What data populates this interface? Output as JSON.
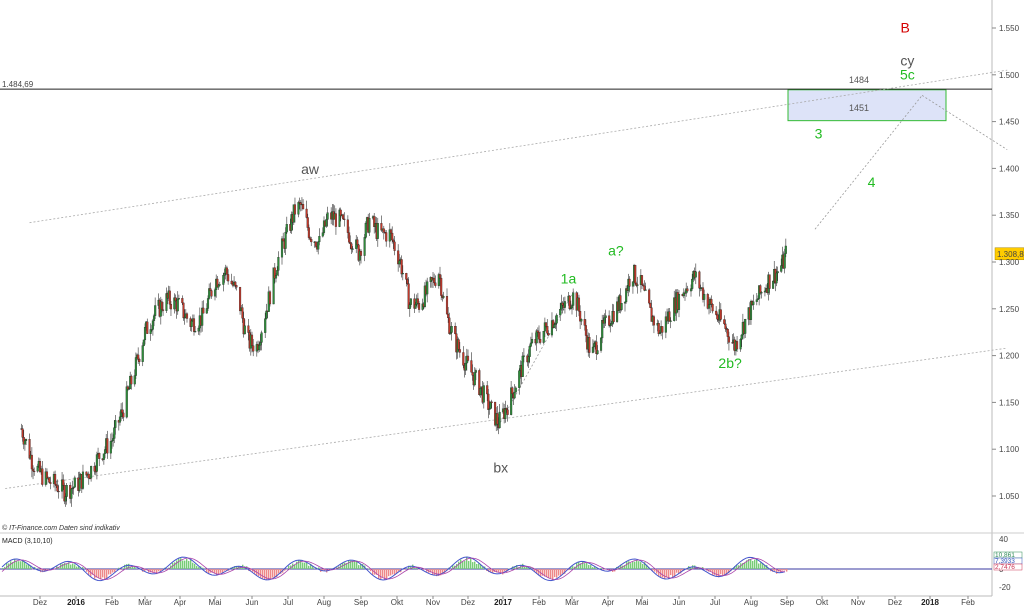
{
  "chart_data": {
    "type": "candlestick",
    "source_note": "© IT-Finance.com  Daten sind indikativ",
    "y_axis": {
      "ticks": [
        "1.550",
        "1.500",
        "1.450",
        "1.400",
        "1.350",
        "1.300",
        "1.250",
        "1.200",
        "1.150",
        "1.100",
        "1.050"
      ],
      "ylim": [
        1.015,
        1.575
      ],
      "tick_values": [
        1.55,
        1.5,
        1.45,
        1.4,
        1.35,
        1.3,
        1.25,
        1.2,
        1.15,
        1.1,
        1.05
      ]
    },
    "x_axis": {
      "labels": [
        "Dez",
        "2016",
        "Feb",
        "Mär",
        "Apr",
        "Mai",
        "Jun",
        "Jul",
        "Aug",
        "Sep",
        "Okt",
        "Nov",
        "Dez",
        "2017",
        "Feb",
        "Mär",
        "Apr",
        "Mai",
        "Jun",
        "Jul",
        "Aug",
        "Sep",
        "Okt",
        "Nov",
        "Dez",
        "2018",
        "Feb"
      ],
      "bold_labels": [
        "2016",
        "2017",
        "2018"
      ]
    },
    "last_price": "1.308,8",
    "last_value": 1.3088,
    "horizontal_line": {
      "value": 1.48469,
      "label": "1.484,69"
    },
    "target_zone": {
      "upper": 1.484,
      "lower": 1.451,
      "upper_label": "1484",
      "lower_label": "1451",
      "start": "Aug 2017",
      "end": "Jan 2018"
    },
    "close_path": [
      [
        "2015-11-15",
        1.122
      ],
      [
        "2015-11-25",
        1.085
      ],
      [
        "2015-12-05",
        1.068
      ],
      [
        "2015-12-15",
        1.062
      ],
      [
        "2015-12-22",
        1.055
      ],
      [
        "2016-01-02",
        1.062
      ],
      [
        "2016-01-12",
        1.075
      ],
      [
        "2016-01-22",
        1.095
      ],
      [
        "2016-02-01",
        1.11
      ],
      [
        "2016-02-10",
        1.14
      ],
      [
        "2016-02-20",
        1.18
      ],
      [
        "2016-03-01",
        1.225
      ],
      [
        "2016-03-10",
        1.245
      ],
      [
        "2016-03-20",
        1.26
      ],
      [
        "2016-03-30",
        1.255
      ],
      [
        "2016-04-10",
        1.235
      ],
      [
        "2016-04-20",
        1.24
      ],
      [
        "2016-05-01",
        1.28
      ],
      [
        "2016-05-10",
        1.29
      ],
      [
        "2016-05-20",
        1.265
      ],
      [
        "2016-05-28",
        1.215
      ],
      [
        "2016-06-05",
        1.21
      ],
      [
        "2016-06-15",
        1.26
      ],
      [
        "2016-06-22",
        1.3
      ],
      [
        "2016-06-30",
        1.33
      ],
      [
        "2016-07-07",
        1.355
      ],
      [
        "2016-07-12",
        1.36
      ],
      [
        "2016-07-20",
        1.33
      ],
      [
        "2016-07-28",
        1.32
      ],
      [
        "2016-08-05",
        1.35
      ],
      [
        "2016-08-14",
        1.345
      ],
      [
        "2016-08-22",
        1.33
      ],
      [
        "2016-08-30",
        1.31
      ],
      [
        "2016-09-08",
        1.345
      ],
      [
        "2016-09-16",
        1.33
      ],
      [
        "2016-09-25",
        1.33
      ],
      [
        "2016-10-04",
        1.3
      ],
      [
        "2016-10-12",
        1.255
      ],
      [
        "2016-10-20",
        1.255
      ],
      [
        "2016-10-28",
        1.27
      ],
      [
        "2016-11-06",
        1.29
      ],
      [
        "2016-11-12",
        1.245
      ],
      [
        "2016-11-20",
        1.215
      ],
      [
        "2016-11-30",
        1.19
      ],
      [
        "2016-12-10",
        1.17
      ],
      [
        "2016-12-20",
        1.145
      ],
      [
        "2016-12-28",
        1.128
      ],
      [
        "2017-01-06",
        1.15
      ],
      [
        "2017-01-15",
        1.18
      ],
      [
        "2017-01-25",
        1.21
      ],
      [
        "2017-02-04",
        1.225
      ],
      [
        "2017-02-14",
        1.24
      ],
      [
        "2017-02-24",
        1.255
      ],
      [
        "2017-03-03",
        1.265
      ],
      [
        "2017-03-10",
        1.235
      ],
      [
        "2017-03-18",
        1.2
      ],
      [
        "2017-03-26",
        1.225
      ],
      [
        "2017-04-05",
        1.245
      ],
      [
        "2017-04-14",
        1.26
      ],
      [
        "2017-04-22",
        1.29
      ],
      [
        "2017-04-30",
        1.275
      ],
      [
        "2017-05-08",
        1.245
      ],
      [
        "2017-05-16",
        1.225
      ],
      [
        "2017-05-26",
        1.25
      ],
      [
        "2017-06-05",
        1.27
      ],
      [
        "2017-06-14",
        1.285
      ],
      [
        "2017-06-22",
        1.265
      ],
      [
        "2017-07-01",
        1.245
      ],
      [
        "2017-07-10",
        1.23
      ],
      [
        "2017-07-18",
        1.21
      ],
      [
        "2017-07-28",
        1.24
      ],
      [
        "2017-08-06",
        1.26
      ],
      [
        "2017-08-16",
        1.28
      ],
      [
        "2017-08-24",
        1.29
      ],
      [
        "2017-08-29",
        1.3
      ],
      [
        "2017-08-31",
        1.309
      ]
    ],
    "channel_lines": [
      {
        "from": [
          "2015-11-22",
          1.342
        ],
        "to": [
          "2018-03-05",
          1.505
        ]
      },
      {
        "from": [
          "2015-11-01",
          1.058
        ],
        "to": [
          "2018-03-05",
          1.208
        ]
      }
    ],
    "projection_lines": [
      {
        "from": [
          "2017-09-25",
          1.335
        ],
        "to": [
          "2017-12-25",
          1.478
        ]
      },
      {
        "from": [
          "2017-12-25",
          1.478
        ],
        "to": [
          "2018-03-05",
          1.42
        ]
      },
      {
        "from": [
          "2016-12-28",
          1.125
        ],
        "to": [
          "2017-03-03",
          1.27
        ]
      }
    ],
    "wave_labels": [
      {
        "text": "B",
        "color": "#d40000",
        "at": [
          "2017-12-10",
          1.545
        ]
      },
      {
        "text": "cy",
        "color": "#555555",
        "at": [
          "2017-12-12",
          1.51
        ]
      },
      {
        "text": "5c",
        "color": "#22bb22",
        "at": [
          "2017-12-12",
          1.495
        ]
      },
      {
        "text": "3",
        "color": "#22bb22",
        "at": [
          "2017-09-28",
          1.432
        ]
      },
      {
        "text": "4",
        "color": "#22bb22",
        "at": [
          "2017-11-12",
          1.38
        ]
      },
      {
        "text": "aw",
        "color": "#555555",
        "at": [
          "2016-07-20",
          1.394
        ]
      },
      {
        "text": "bx",
        "color": "#555555",
        "at": [
          "2016-12-30",
          1.075
        ]
      },
      {
        "text": "1a",
        "color": "#22bb22",
        "at": [
          "2017-02-26",
          1.277
        ]
      },
      {
        "text": "a?",
        "color": "#22bb22",
        "at": [
          "2017-04-08",
          1.307
        ]
      },
      {
        "text": "2b?",
        "color": "#22bb22",
        "at": [
          "2017-07-14",
          1.187
        ]
      }
    ],
    "macd": {
      "label": "MACD (3,10,10)",
      "ticks": [
        "40",
        "0",
        "-20"
      ],
      "values": [
        "10,861",
        "7,3933",
        "2,7476"
      ],
      "value_colors": [
        "#2e8b57",
        "#3355bb",
        "#cc3355"
      ]
    }
  }
}
